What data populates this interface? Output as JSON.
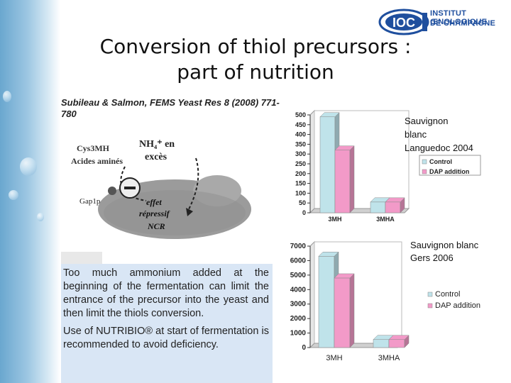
{
  "title_line1": "Conversion of thiol precursors :",
  "title_line2": "part of nutrition",
  "citation": "Subileau & Salmon, FEMS Yeast Res 8 (2008) 771-780",
  "logo": {
    "name": "IOC",
    "line1": "INSTITUT ŒNOLOGIQUE",
    "line2": "DE CHAMPAGNE"
  },
  "diagram": {
    "nh4": "NH₄⁺ en",
    "exces": "excès",
    "cys": "Cys3MH",
    "aa": "Acides aminés",
    "gap": "Gap1p",
    "effet": "effet",
    "repressif": "répressif",
    "ncr": "NCR"
  },
  "text_paragraph1": "Too much ammonium added at the beginning of the fermentation can limit the entrance of the precursor into the yeast and then limit the thiols conversion.",
  "text_paragraph2": "Use of NUTRIBIO® at start of fermentation is recommended to avoid deficiency.",
  "chart1_note": [
    "Sauvignon",
    "blanc",
    "Languedoc 2004"
  ],
  "chart2_note": [
    "Sauvignon blanc",
    "Gers 2006"
  ],
  "colors": {
    "control": "#bfe3ea",
    "dap": "#f29ac8",
    "accent": "#1f4f9e"
  },
  "chart_data": [
    {
      "type": "bar",
      "categories": [
        "3MH",
        "3MHA"
      ],
      "series": [
        {
          "name": "Control",
          "values": [
            490,
            55
          ]
        },
        {
          "name": "DAP addition",
          "values": [
            320,
            55
          ]
        }
      ],
      "ylim": [
        0,
        500
      ],
      "yticks": [
        0,
        50,
        100,
        150,
        200,
        250,
        300,
        350,
        400,
        450,
        500
      ],
      "legend": "right"
    },
    {
      "type": "bar",
      "categories": [
        "3MH",
        "3MHA"
      ],
      "series": [
        {
          "name": "Control",
          "values": [
            6300,
            550
          ]
        },
        {
          "name": "DAP addition",
          "values": [
            4800,
            550
          ]
        }
      ],
      "ylim": [
        0,
        7000
      ],
      "yticks": [
        0,
        1000,
        2000,
        3000,
        4000,
        5000,
        6000,
        7000
      ],
      "legend": "right"
    }
  ]
}
